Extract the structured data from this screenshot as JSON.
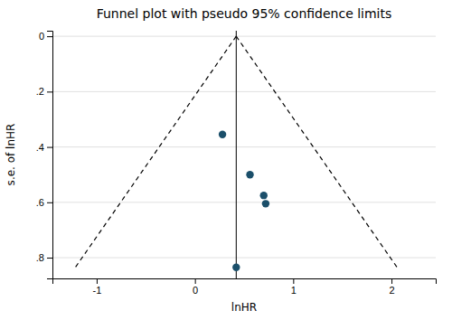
{
  "chart_data": {
    "type": "scatter",
    "title": "Funnel plot with pseudo 95% confidence limits",
    "xlabel": "lnHR",
    "ylabel": "s.e. of lnHR",
    "xlim": [
      -1.45,
      2.45
    ],
    "ylim": [
      0.875,
      -0.02
    ],
    "xticks": [
      -1,
      0,
      1,
      2
    ],
    "yticks": [
      0,
      {
        "value": 0.2,
        "label": ".2"
      },
      {
        "value": 0.4,
        "label": ".4"
      },
      {
        "value": 0.6,
        "label": ".6"
      },
      {
        "value": 0.8,
        "label": ".8"
      }
    ],
    "grid": "y",
    "pooled": 0.42,
    "series": [
      {
        "type": "scatter",
        "color": "#1b4f6a",
        "x": [
          0.28,
          0.42,
          0.56,
          0.7,
          0.72
        ],
        "values": [
          0.355,
          0.835,
          0.5,
          0.575,
          0.605
        ]
      },
      {
        "type": "line",
        "line_style": "dashed",
        "color": "#000000",
        "x": [
          0.42,
          -1.2264
        ],
        "values": [
          0,
          0.84
        ]
      },
      {
        "type": "line",
        "line_style": "dashed",
        "color": "#000000",
        "x": [
          0.42,
          2.0664
        ],
        "values": [
          0,
          0.84
        ]
      }
    ]
  }
}
